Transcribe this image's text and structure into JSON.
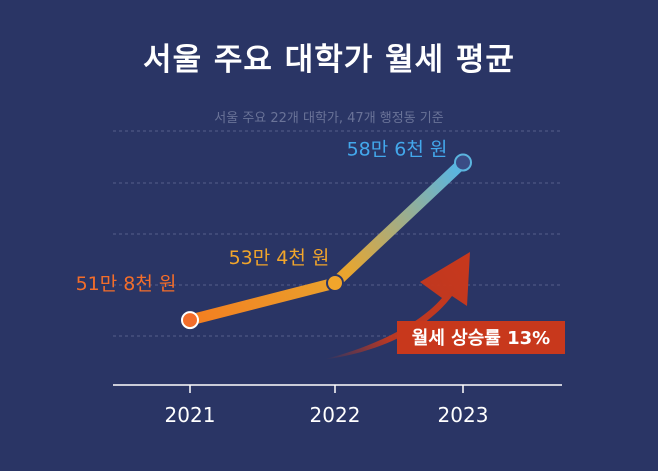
{
  "header": {
    "title": "서울 주요 대학가 월세 평균",
    "subtitle": "서울 주요 22개 대학가, 47개 행정동 기준"
  },
  "chart_data": {
    "type": "line",
    "title": "서울 주요 대학가 월세 평균",
    "subtitle": "서울 주요 22개 대학가, 47개 행정동 기준",
    "x": [
      "2021",
      "2022",
      "2023"
    ],
    "series": [
      {
        "values": [
          518000,
          534000,
          586000
        ],
        "labels": [
          "51만 8천 원",
          "53만 4천 원",
          "58만 6천 원"
        ],
        "label_colors": [
          "#f36d2a",
          "#f1a52b",
          "#43a8ec"
        ]
      }
    ],
    "ylim": [
      490000,
      600000
    ],
    "grid": true,
    "annotation": {
      "text": "월세 상승률 13%",
      "color": "#c8381c"
    },
    "colors": {
      "line_start": "#f5781e",
      "line_mid": "#e8a52e",
      "line_end": "#5bb5df",
      "axis": "#ffffff",
      "grid": "#55608c",
      "tick_label": "#ffffff"
    }
  }
}
